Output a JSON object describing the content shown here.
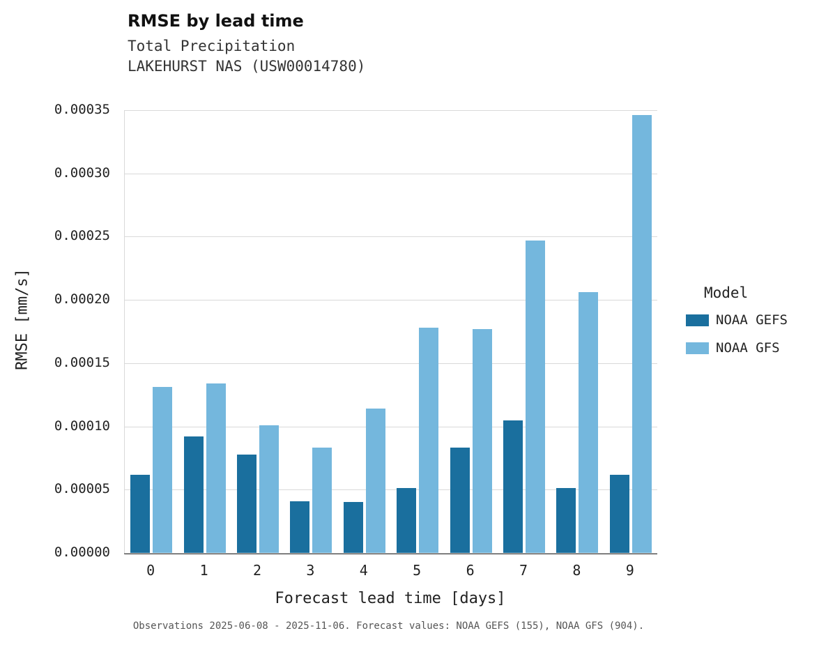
{
  "chart": {
    "title": "RMSE by lead time",
    "subtitle1": "Total Precipitation",
    "subtitle2": "LAKEHURST NAS (USW00014780)",
    "ylabel": "RMSE [mm/s]",
    "xlabel": "Forecast lead time [days]",
    "legend_title": "Model",
    "caption": "Observations 2025-06-08 - 2025-11-06. Forecast values: NOAA GEFS (155), NOAA GFS (904)."
  },
  "chart_data": {
    "type": "bar",
    "title": "RMSE by lead time",
    "subtitle": [
      "Total Precipitation",
      "LAKEHURST NAS (USW00014780)"
    ],
    "xlabel": "Forecast lead time [days]",
    "ylabel": "RMSE [mm/s]",
    "categories": [
      "0",
      "1",
      "2",
      "3",
      "4",
      "5",
      "6",
      "7",
      "8",
      "9"
    ],
    "series": [
      {
        "name": "NOAA GEFS",
        "color": "#1a6f9e",
        "values": [
          6.2e-05,
          9.2e-05,
          7.8e-05,
          4.1e-05,
          4e-05,
          5.1e-05,
          8.3e-05,
          0.000105,
          5.1e-05,
          6.2e-05
        ]
      },
      {
        "name": "NOAA GFS",
        "color": "#74b7dd",
        "values": [
          0.000131,
          0.000134,
          0.000101,
          8.3e-05,
          0.000114,
          0.000178,
          0.000177,
          0.000247,
          0.000206,
          0.000346
        ]
      }
    ],
    "ylim": [
      0,
      0.00035
    ],
    "yticks": [
      0.0,
      5e-05,
      0.0001,
      0.00015,
      0.0002,
      0.00025,
      0.0003,
      0.00035
    ],
    "ytick_labels": [
      "0.00000",
      "0.00005",
      "0.00010",
      "0.00015",
      "0.00020",
      "0.00025",
      "0.00030",
      "0.00035"
    ],
    "grid": true,
    "legend_position": "right",
    "legend_title": "Model",
    "caption": "Observations 2025-06-08 - 2025-11-06. Forecast values: NOAA GEFS (155), NOAA GFS (904)."
  }
}
